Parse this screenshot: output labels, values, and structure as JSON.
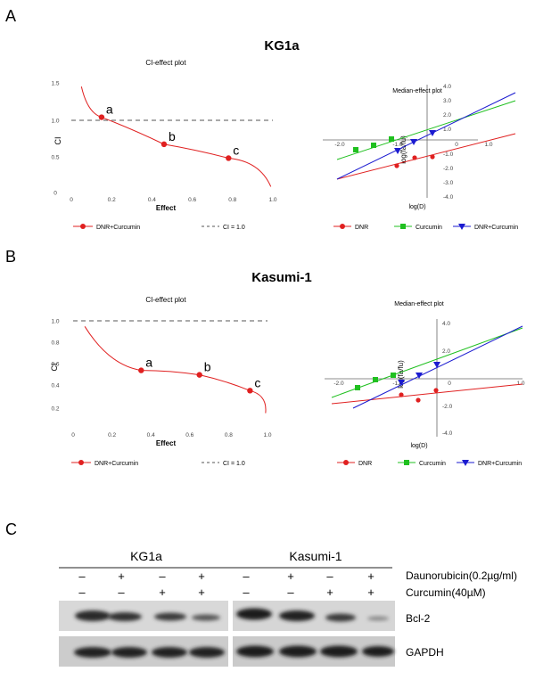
{
  "panels": {
    "A": {
      "label": "A",
      "title": "KG1a",
      "ci_plot": {
        "title": "CI-effect plot",
        "xlabel": "Effect",
        "ylabel": "CI",
        "xticks": [
          "0",
          "0.2",
          "0.4",
          "0.6",
          "0.8",
          "1.0"
        ],
        "yticks": [
          "0",
          "0.5",
          "1.0",
          "1.5"
        ],
        "points": [
          {
            "label": "a",
            "x": 0.15,
            "y": 1.03
          },
          {
            "label": "b",
            "x": 0.46,
            "y": 0.66
          },
          {
            "label": "c",
            "x": 0.78,
            "y": 0.47
          }
        ],
        "legend": {
          "series": "DNR+Curcumin",
          "reference": "CI = 1.0"
        }
      },
      "median_plot": {
        "title": "Median-effect plot",
        "xlabel": "log(D)",
        "ylabel": "log(fa/fu)",
        "xticks": [
          "-2.0",
          "-1.0",
          "0",
          "1.0"
        ],
        "yticks": [
          "4.0",
          "3.0",
          "2.0",
          "1.0",
          "-1.0",
          "-2.0",
          "-3.0",
          "-4.0"
        ],
        "legend": [
          "DNR",
          "Curcumin",
          "DNR+Curcumin"
        ]
      }
    },
    "B": {
      "label": "B",
      "title": "Kasumi-1",
      "ci_plot": {
        "title": "CI-effect plot",
        "xlabel": "Effect",
        "ylabel": "CI",
        "xticks": [
          "0",
          "0.2",
          "0.4",
          "0.6",
          "0.8",
          "1.0"
        ],
        "yticks": [
          "0.2",
          "0.4",
          "0.6",
          "0.8",
          "1.0"
        ],
        "points": [
          {
            "label": "a",
            "x": 0.35,
            "y": 0.56
          },
          {
            "label": "b",
            "x": 0.65,
            "y": 0.52
          },
          {
            "label": "c",
            "x": 0.91,
            "y": 0.38
          }
        ],
        "legend": {
          "series": "DNR+Curcumin",
          "reference": "CI = 1.0"
        }
      },
      "median_plot": {
        "title": "Median-effect plot",
        "xlabel": "log(D)",
        "ylabel": "log(fa/fu)",
        "xticks": [
          "-2.0",
          "-1.0",
          "0",
          "1.0"
        ],
        "yticks": [
          "4.0",
          "2.0",
          "-2.0",
          "-4.0"
        ],
        "legend": [
          "DNR",
          "Curcumin",
          "DNR+Curcumin"
        ]
      }
    },
    "C": {
      "label": "C",
      "cell_lines": [
        "KG1a",
        "Kasumi-1"
      ],
      "row_labels": [
        "Daunorubicin(0.2µg/ml)",
        "Curcumin(40µM)"
      ],
      "dnr_signs": [
        "–",
        "+",
        "–",
        "+",
        "–",
        "+",
        "–",
        "+"
      ],
      "cur_signs": [
        "–",
        "–",
        "+",
        "+",
        "–",
        "–",
        "+",
        "+"
      ],
      "blots": [
        "Bcl-2",
        "GAPDH"
      ]
    }
  },
  "colors": {
    "dnr": "#e02020",
    "curcumin": "#20c020",
    "combo": "#1a1ad0",
    "ref": "#555555"
  }
}
